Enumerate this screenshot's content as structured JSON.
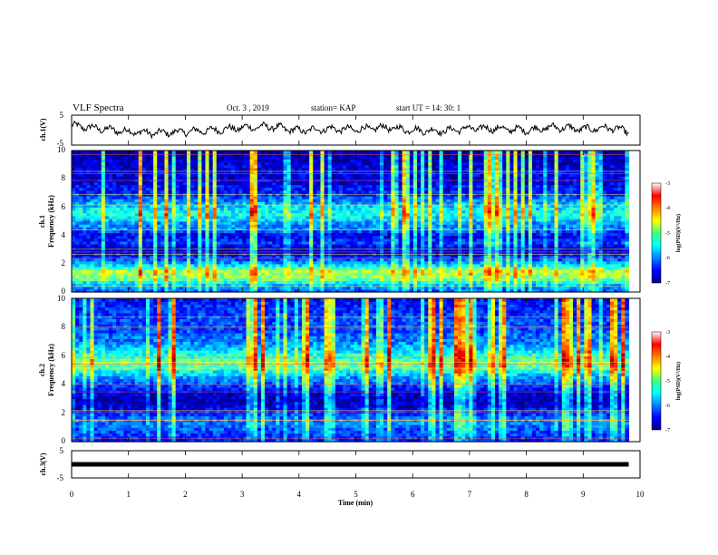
{
  "header": {
    "title": "VLF Spectra",
    "date": "Oct. 3  , 2019",
    "station": "station= KAP",
    "start": "start  UT  =   14: 30: 1"
  },
  "colors": {
    "trace": "#000000",
    "frame": "#000000",
    "spectrogram_low": "#00008f",
    "spectrogram_high": "#ff0000"
  },
  "chart_data": [
    {
      "type": "line",
      "panel": "ch1-waveform",
      "ylabel": "ch.1(V)",
      "ylim": [
        -5,
        5
      ],
      "yticks": [
        "5",
        "-5"
      ],
      "x": [
        0,
        0.5,
        1,
        1.5,
        2,
        2.5,
        3,
        3.5,
        4,
        4.5,
        5,
        5.5,
        6,
        6.5,
        7,
        7.5,
        8,
        8.5,
        9,
        9.5,
        9.8
      ],
      "y": [
        1.5,
        0.5,
        -0.5,
        -1.0,
        -0.5,
        0.0,
        0.8,
        1.2,
        -0.2,
        0.4,
        0.2,
        0.9,
        0.0,
        -0.3,
        0.6,
        0.5,
        0.0,
        1.0,
        0.3,
        0.8,
        -0.5
      ]
    },
    {
      "type": "heatmap",
      "panel": "ch1-spectrogram",
      "ylabel": "ch.1",
      "ylabel2": "Frequency (kHz)",
      "ylim": [
        0,
        10
      ],
      "yticks": [
        "0",
        "2",
        "4",
        "6",
        "8",
        "10"
      ],
      "freq_kHz": [
        0,
        0.5,
        1,
        1.5,
        2,
        2.5,
        3,
        3.5,
        4,
        4.5,
        5,
        5.5,
        6,
        6.5,
        7,
        7.5,
        8,
        8.5,
        9,
        9.5,
        10
      ],
      "level_log_psd": [
        -6.2,
        -5.8,
        -5.0,
        -4.8,
        -5.8,
        -6.4,
        -6.8,
        -6.3,
        -6.6,
        -6.0,
        -5.9,
        -5.4,
        -5.6,
        -6.0,
        -6.4,
        -6.5,
        -6.7,
        -6.6,
        -6.7,
        -6.8,
        -6.9
      ]
    },
    {
      "type": "heatmap",
      "panel": "ch2-spectrogram",
      "ylabel": "ch.2",
      "ylabel2": "Frequency (kHz)",
      "ylim": [
        0,
        10
      ],
      "yticks": [
        "0",
        "2",
        "4",
        "6",
        "8",
        "10"
      ],
      "freq_kHz": [
        0,
        0.5,
        1,
        1.5,
        2,
        2.5,
        3,
        3.5,
        4,
        4.5,
        5,
        5.5,
        6,
        6.5,
        7,
        7.5,
        8,
        8.5,
        9,
        9.5,
        10
      ],
      "level_log_psd": [
        -6.5,
        -6.3,
        -6.1,
        -6.0,
        -6.3,
        -6.7,
        -6.8,
        -6.6,
        -6.2,
        -5.9,
        -5.4,
        -5.0,
        -5.3,
        -5.7,
        -6.0,
        -6.1,
        -6.3,
        -6.2,
        -6.3,
        -6.4,
        -6.5
      ]
    },
    {
      "type": "line",
      "panel": "ch3-waveform",
      "ylabel": "ch.3(V)",
      "ylim": [
        -5,
        5
      ],
      "yticks": [
        "5",
        "-5"
      ],
      "x": [
        0,
        9.8
      ],
      "y": [
        0,
        0
      ]
    }
  ],
  "time_axis": {
    "label": "Time  (min)",
    "xlim": [
      0,
      10
    ],
    "ticks": [
      "0",
      "1",
      "2",
      "3",
      "4",
      "5",
      "6",
      "7",
      "8",
      "9",
      "10"
    ]
  },
  "colorbar": {
    "label": "log(PSD)(V²/Hz)",
    "range": [
      -7,
      -3
    ],
    "ticks": [
      "-3",
      "-4",
      "-5",
      "-6",
      "-7"
    ]
  }
}
